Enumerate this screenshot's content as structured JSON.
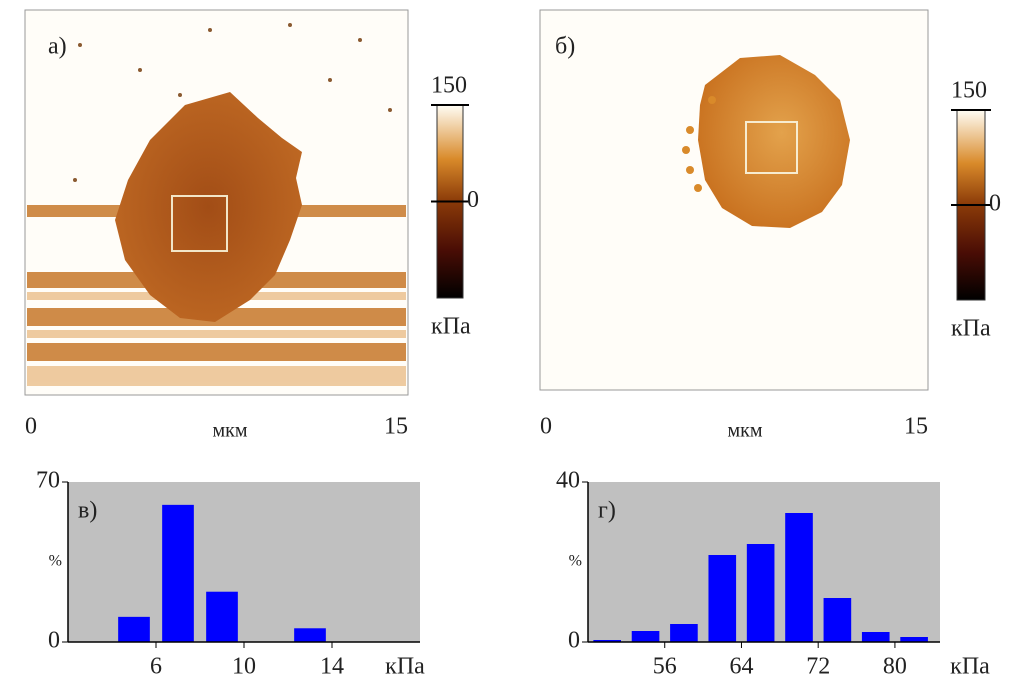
{
  "chart_data": [
    {
      "type": "image",
      "panel_label": "а)",
      "xlim": [
        0,
        15
      ],
      "xticks": [
        0,
        15
      ],
      "xlabel": "мкм",
      "clim": [
        -150,
        150
      ],
      "cticks": [
        0,
        150
      ],
      "clabel": "кПа"
    },
    {
      "type": "image",
      "panel_label": "б)",
      "xlim": [
        0,
        15
      ],
      "xticks": [
        0,
        15
      ],
      "xlabel": "мкм",
      "clim": [
        -150,
        150
      ],
      "cticks": [
        0,
        150
      ],
      "clabel": "кПа"
    },
    {
      "type": "bar",
      "panel_label": "в)",
      "ylabel": "%",
      "xlabel": "кПа",
      "color": "#0000ff",
      "x": [
        5,
        7,
        9,
        13
      ],
      "values": [
        11,
        60,
        22,
        6
      ],
      "xlim": [
        2,
        18
      ],
      "xticks": [
        6,
        10,
        14
      ],
      "ylim": [
        0,
        70
      ],
      "yticks": [
        0,
        70
      ]
    },
    {
      "type": "bar",
      "panel_label": "г)",
      "ylabel": "%",
      "xlabel": "кПа",
      "color": "#0000ff",
      "x": [
        50,
        54,
        58,
        62,
        66,
        70,
        74,
        78,
        82
      ],
      "values": [
        0.5,
        2.75,
        4.5,
        21.75,
        24.5,
        32.25,
        11,
        2.5,
        1.25
      ],
      "xlim": [
        48,
        84.7
      ],
      "xticks": [
        56,
        64,
        72,
        80
      ],
      "ylim": [
        0,
        40
      ],
      "yticks": [
        0,
        40
      ]
    }
  ]
}
